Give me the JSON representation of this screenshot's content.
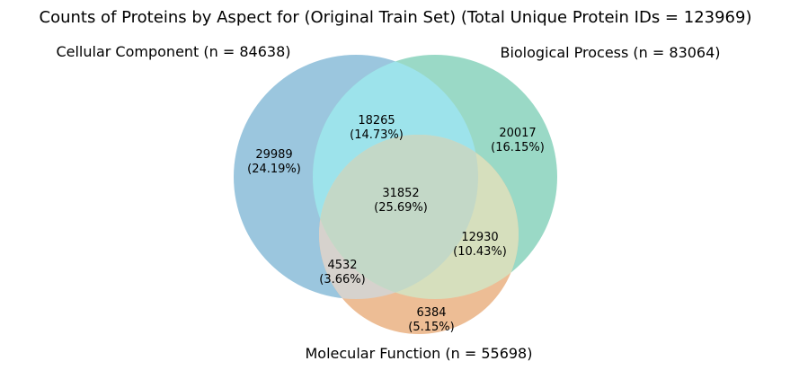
{
  "title": "Counts of Proteins by Aspect for (Original Train Set) (Total Unique Protein IDs = 123969)",
  "sets": {
    "cellular_component": {
      "label": "Cellular Component (n = 84638)",
      "color": "#9bc6de"
    },
    "biological_process": {
      "label": "Biological Process (n = 83064)",
      "color": "#9ad9c6"
    },
    "molecular_function": {
      "label": "Molecular Function (n = 55698)",
      "color": "#edbd95"
    }
  },
  "overlap_colors": {
    "cc_bp": "#9de3eb",
    "bp_mf": "#d6dfbd",
    "cc_mf": "#d6d2cd",
    "all": "#c3d8c7"
  },
  "regions": {
    "cc_only": {
      "count": "29989",
      "pct": "(24.19%)"
    },
    "bp_only": {
      "count": "20017",
      "pct": "(16.15%)"
    },
    "mf_only": {
      "count": "6384",
      "pct": "(5.15%)"
    },
    "cc_bp": {
      "count": "18265",
      "pct": "(14.73%)"
    },
    "bp_mf": {
      "count": "12930",
      "pct": "(10.43%)"
    },
    "cc_mf": {
      "count": "4532",
      "pct": "(3.66%)"
    },
    "all": {
      "count": "31852",
      "pct": "(25.69%)"
    }
  }
}
